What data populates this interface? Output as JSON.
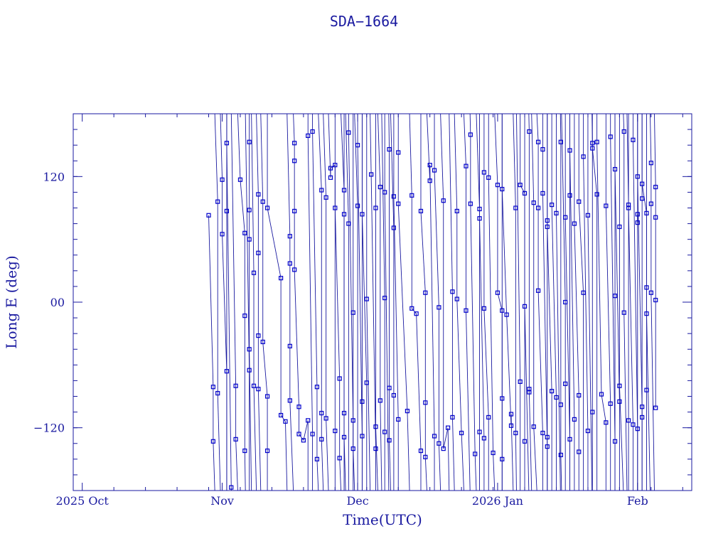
{
  "chart_data": {
    "type": "scatter",
    "title": "SDA−1664",
    "xlabel": "Time(UTC)",
    "ylabel": "Long E (deg)",
    "x_axis": {
      "type": "date",
      "range": [
        "2025-09-29",
        "2026-02-13"
      ],
      "ticks": [
        {
          "date": "2025-10-01",
          "label": "2025 Oct"
        },
        {
          "date": "2025-11-01",
          "label": "Nov"
        },
        {
          "date": "2025-12-01",
          "label": "Dec"
        },
        {
          "date": "2026-01-01",
          "label": "2026 Jan"
        },
        {
          "date": "2026-02-01",
          "label": "Feb"
        }
      ]
    },
    "y_axis": {
      "range": [
        -180,
        180
      ],
      "ticks": [
        {
          "value": -120,
          "label": "−120"
        },
        {
          "value": 0,
          "label": "00"
        },
        {
          "value": 120,
          "label": "120"
        }
      ]
    },
    "grid": false,
    "series": [
      {
        "note": "longitude samples (lines wrap between +180 and -180)",
        "points": [
          [
            "2025-10-29",
            83
          ],
          [
            "2025-10-30",
            -81
          ],
          [
            "2025-10-30",
            -133
          ],
          [
            "2025-10-31",
            96
          ],
          [
            "2025-10-31",
            -87
          ],
          [
            "2025-11-01",
            117
          ],
          [
            "2025-11-01",
            65
          ],
          [
            "2025-11-02",
            -66
          ],
          [
            "2025-11-02",
            87
          ],
          [
            "2025-11-02",
            152
          ],
          [
            "2025-11-03",
            -177
          ],
          [
            "2025-11-04",
            -80
          ],
          [
            "2025-11-04",
            -131
          ],
          [
            "2025-11-05",
            117
          ],
          [
            "2025-11-06",
            66
          ],
          [
            "2025-11-06",
            -13
          ],
          [
            "2025-11-06",
            -142
          ],
          [
            "2025-11-07",
            -65
          ],
          [
            "2025-11-07",
            153
          ],
          [
            "2025-11-07",
            88
          ],
          [
            "2025-11-07",
            60
          ],
          [
            "2025-11-07",
            -45
          ],
          [
            "2025-11-08",
            28
          ],
          [
            "2025-11-08",
            -80
          ],
          [
            "2025-11-09",
            103
          ],
          [
            "2025-11-09",
            47
          ],
          [
            "2025-11-09",
            -32
          ],
          [
            "2025-11-09",
            -83
          ],
          [
            "2025-11-10",
            96
          ],
          [
            "2025-11-10",
            -38
          ],
          [
            "2025-11-11",
            -90
          ],
          [
            "2025-11-11",
            -142
          ],
          [
            "2025-11-11",
            90
          ],
          [
            "2025-11-14",
            23
          ],
          [
            "2025-11-14",
            -108
          ],
          [
            "2025-11-15",
            -114
          ],
          [
            "2025-11-16",
            63
          ],
          [
            "2025-11-16",
            37
          ],
          [
            "2025-11-16",
            -42
          ],
          [
            "2025-11-16",
            -94
          ],
          [
            "2025-11-17",
            152
          ],
          [
            "2025-11-17",
            135
          ],
          [
            "2025-11-17",
            87
          ],
          [
            "2025-11-17",
            31
          ],
          [
            "2025-11-18",
            -100
          ],
          [
            "2025-11-18",
            -126
          ],
          [
            "2025-11-19",
            -132
          ],
          [
            "2025-11-20",
            -113
          ],
          [
            "2025-11-20",
            159
          ],
          [
            "2025-11-21",
            -126
          ],
          [
            "2025-11-21",
            163
          ],
          [
            "2025-11-22",
            -81
          ],
          [
            "2025-11-22",
            -150
          ],
          [
            "2025-11-23",
            107
          ],
          [
            "2025-11-23",
            -106
          ],
          [
            "2025-11-23",
            -131
          ],
          [
            "2025-11-24",
            100
          ],
          [
            "2025-11-24",
            -111
          ],
          [
            "2025-11-25",
            119
          ],
          [
            "2025-11-25",
            128
          ],
          [
            "2025-11-26",
            131
          ],
          [
            "2025-11-26",
            -123
          ],
          [
            "2025-11-26",
            90
          ],
          [
            "2025-11-27",
            -73
          ],
          [
            "2025-11-27",
            -149
          ],
          [
            "2025-11-28",
            107
          ],
          [
            "2025-11-28",
            -106
          ],
          [
            "2025-11-28",
            84
          ],
          [
            "2025-11-28",
            -129
          ],
          [
            "2025-11-29",
            75
          ],
          [
            "2025-11-29",
            162
          ],
          [
            "2025-11-30",
            -113
          ],
          [
            "2025-11-30",
            -10
          ],
          [
            "2025-11-30",
            -140
          ],
          [
            "2025-12-01",
            92
          ],
          [
            "2025-12-01",
            150
          ],
          [
            "2025-12-02",
            -128
          ],
          [
            "2025-12-02",
            -95
          ],
          [
            "2025-12-02",
            84
          ],
          [
            "2025-12-03",
            -77
          ],
          [
            "2025-12-03",
            3
          ],
          [
            "2025-12-04",
            122
          ],
          [
            "2025-12-05",
            -140
          ],
          [
            "2025-12-05",
            90
          ],
          [
            "2025-12-05",
            -119
          ],
          [
            "2025-12-06",
            110
          ],
          [
            "2025-12-06",
            -94
          ],
          [
            "2025-12-07",
            4
          ],
          [
            "2025-12-07",
            -124
          ],
          [
            "2025-12-07",
            105
          ],
          [
            "2025-12-08",
            146
          ],
          [
            "2025-12-08",
            -82
          ],
          [
            "2025-12-08",
            -132
          ],
          [
            "2025-12-09",
            71
          ],
          [
            "2025-12-09",
            -89
          ],
          [
            "2025-12-09",
            101
          ],
          [
            "2025-12-10",
            -112
          ],
          [
            "2025-12-10",
            143
          ],
          [
            "2025-12-10",
            94
          ],
          [
            "2025-12-12",
            -104
          ],
          [
            "2025-12-13",
            102
          ],
          [
            "2025-12-13",
            -6
          ],
          [
            "2025-12-14",
            -11
          ],
          [
            "2025-12-15",
            -142
          ],
          [
            "2025-12-15",
            87
          ],
          [
            "2025-12-16",
            9
          ],
          [
            "2025-12-16",
            -96
          ],
          [
            "2025-12-16",
            -148
          ],
          [
            "2025-12-17",
            116
          ],
          [
            "2025-12-17",
            131
          ],
          [
            "2025-12-18",
            -128
          ],
          [
            "2025-12-18",
            126
          ],
          [
            "2025-12-19",
            -5
          ],
          [
            "2025-12-19",
            -135
          ],
          [
            "2025-12-20",
            97
          ],
          [
            "2025-12-20",
            -140
          ],
          [
            "2025-12-21",
            -120
          ],
          [
            "2025-12-22",
            10
          ],
          [
            "2025-12-22",
            -110
          ],
          [
            "2025-12-23",
            87
          ],
          [
            "2025-12-23",
            3
          ],
          [
            "2025-12-24",
            -125
          ],
          [
            "2025-12-25",
            130
          ],
          [
            "2025-12-25",
            -8
          ],
          [
            "2025-12-26",
            160
          ],
          [
            "2025-12-26",
            94
          ],
          [
            "2025-12-27",
            -145
          ],
          [
            "2025-12-28",
            89
          ],
          [
            "2025-12-28",
            -124
          ],
          [
            "2025-12-28",
            80
          ],
          [
            "2025-12-29",
            -130
          ],
          [
            "2025-12-29",
            124
          ],
          [
            "2025-12-29",
            -6
          ],
          [
            "2025-12-30",
            -110
          ],
          [
            "2025-12-30",
            119
          ],
          [
            "2025-12-31",
            -144
          ],
          [
            "2026-01-01",
            112
          ],
          [
            "2026-01-01",
            9
          ],
          [
            "2026-01-02",
            -8
          ],
          [
            "2026-01-02",
            -150
          ],
          [
            "2026-01-02",
            -92
          ],
          [
            "2026-01-02",
            108
          ],
          [
            "2026-01-03",
            -12
          ],
          [
            "2026-01-04",
            -118
          ],
          [
            "2026-01-04",
            -107
          ],
          [
            "2026-01-05",
            90
          ],
          [
            "2026-01-05",
            -125
          ],
          [
            "2026-01-06",
            -76
          ],
          [
            "2026-01-06",
            112
          ],
          [
            "2026-01-07",
            104
          ],
          [
            "2026-01-07",
            -133
          ],
          [
            "2026-01-07",
            -4
          ],
          [
            "2026-01-08",
            163
          ],
          [
            "2026-01-08",
            -83
          ],
          [
            "2026-01-08",
            -86
          ],
          [
            "2026-01-09",
            95
          ],
          [
            "2026-01-09",
            -119
          ],
          [
            "2026-01-10",
            153
          ],
          [
            "2026-01-10",
            90
          ],
          [
            "2026-01-10",
            11
          ],
          [
            "2026-01-11",
            -125
          ],
          [
            "2026-01-11",
            146
          ],
          [
            "2026-01-11",
            104
          ],
          [
            "2026-01-12",
            -138
          ],
          [
            "2026-01-12",
            78
          ],
          [
            "2026-01-12",
            -129
          ],
          [
            "2026-01-12",
            72
          ],
          [
            "2026-01-13",
            -85
          ],
          [
            "2026-01-13",
            93
          ],
          [
            "2026-01-14",
            -91
          ],
          [
            "2026-01-14",
            85
          ],
          [
            "2026-01-15",
            153
          ],
          [
            "2026-01-15",
            -98
          ],
          [
            "2026-01-15",
            -146
          ],
          [
            "2026-01-16",
            0
          ],
          [
            "2026-01-16",
            -78
          ],
          [
            "2026-01-16",
            81
          ],
          [
            "2026-01-17",
            -131
          ],
          [
            "2026-01-17",
            102
          ],
          [
            "2026-01-17",
            145
          ],
          [
            "2026-01-18",
            -112
          ],
          [
            "2026-01-18",
            75
          ],
          [
            "2026-01-19",
            -89
          ],
          [
            "2026-01-19",
            -143
          ],
          [
            "2026-01-19",
            96
          ],
          [
            "2026-01-20",
            9
          ],
          [
            "2026-01-20",
            139
          ],
          [
            "2026-01-21",
            -123
          ],
          [
            "2026-01-21",
            83
          ],
          [
            "2026-01-22",
            152
          ],
          [
            "2026-01-22",
            -105
          ],
          [
            "2026-01-22",
            147
          ],
          [
            "2026-01-23",
            103
          ],
          [
            "2026-01-23",
            153
          ],
          [
            "2026-01-24",
            -88
          ],
          [
            "2026-01-25",
            -115
          ],
          [
            "2026-01-25",
            92
          ],
          [
            "2026-01-26",
            -97
          ],
          [
            "2026-01-26",
            158
          ],
          [
            "2026-01-27",
            -133
          ],
          [
            "2026-01-27",
            6
          ],
          [
            "2026-01-27",
            127
          ],
          [
            "2026-01-28",
            -95
          ],
          [
            "2026-01-28",
            72
          ],
          [
            "2026-01-28",
            -80
          ],
          [
            "2026-01-29",
            163
          ],
          [
            "2026-01-29",
            -10
          ],
          [
            "2026-01-30",
            93
          ],
          [
            "2026-01-30",
            -113
          ],
          [
            "2026-01-30",
            90
          ],
          [
            "2026-01-31",
            -117
          ],
          [
            "2026-01-31",
            155
          ],
          [
            "2026-02-01",
            -121
          ],
          [
            "2026-02-01",
            76
          ],
          [
            "2026-02-01",
            84
          ],
          [
            "2026-02-01",
            120
          ],
          [
            "2026-02-02",
            -100
          ],
          [
            "2026-02-02",
            99
          ],
          [
            "2026-02-02",
            -110
          ],
          [
            "2026-02-02",
            113
          ],
          [
            "2026-02-03",
            85
          ],
          [
            "2026-02-03",
            -84
          ],
          [
            "2026-02-03",
            14
          ],
          [
            "2026-02-03",
            -11
          ],
          [
            "2026-02-04",
            133
          ],
          [
            "2026-02-04",
            94
          ],
          [
            "2026-02-04",
            9
          ],
          [
            "2026-02-05",
            110
          ],
          [
            "2026-02-05",
            81
          ],
          [
            "2026-02-05",
            2
          ],
          [
            "2026-02-05",
            -101
          ]
        ]
      }
    ]
  }
}
